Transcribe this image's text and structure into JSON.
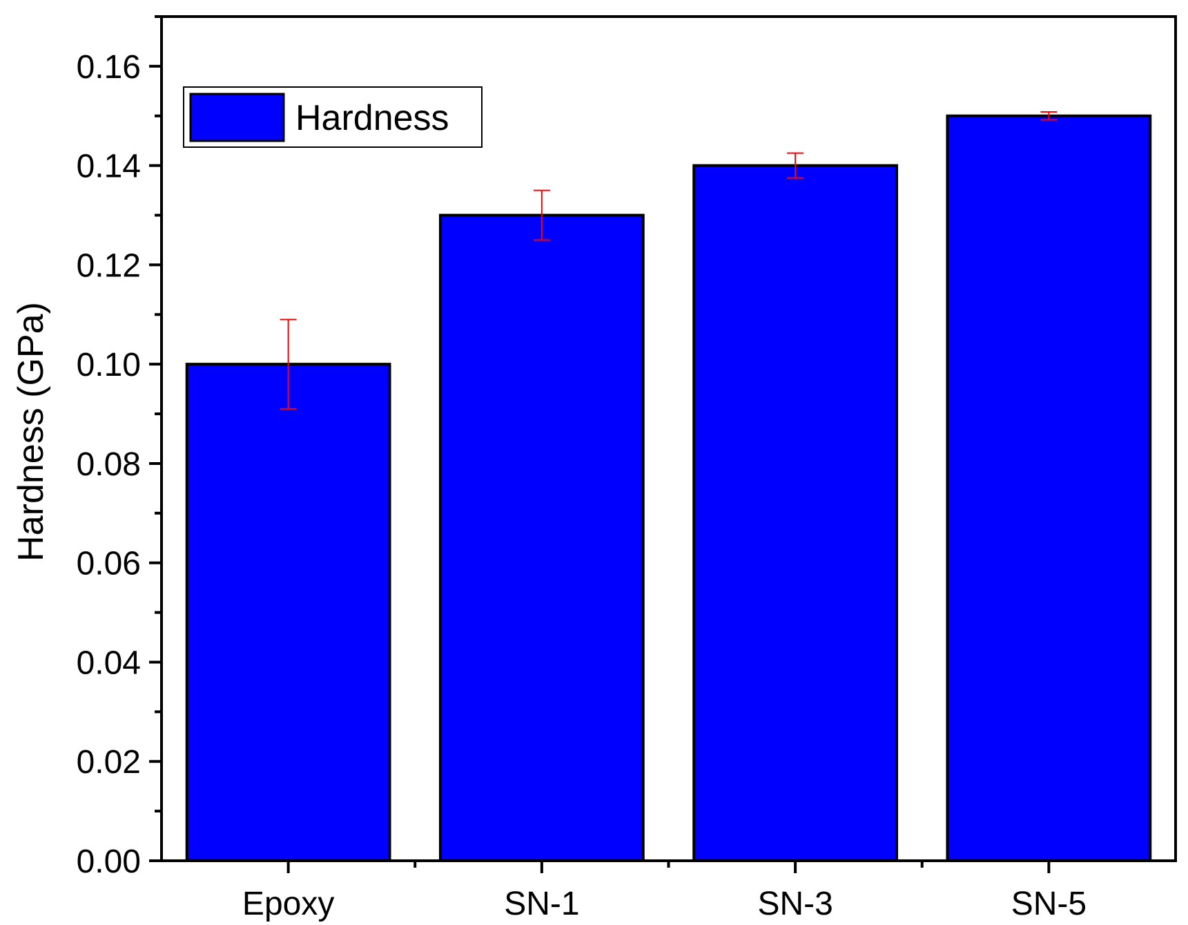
{
  "chart_data": {
    "type": "bar",
    "categories": [
      "Epoxy",
      "SN-1",
      "SN-3",
      "SN-5"
    ],
    "series": [
      {
        "name": "Hardness",
        "values": [
          0.1,
          0.13,
          0.14,
          0.15
        ],
        "errors": [
          0.009,
          0.005,
          0.0025,
          0.0008
        ],
        "color": "#0000FF",
        "error_color": "#FF0000"
      }
    ],
    "ylabel": "Hardness (GPa)",
    "xlabel": "",
    "ylim": [
      0,
      0.17
    ],
    "yticks": [
      "0.00",
      "0.02",
      "0.04",
      "0.06",
      "0.08",
      "0.10",
      "0.12",
      "0.14",
      "0.16"
    ],
    "grid": false,
    "legend_position": "top-left",
    "legend_label": "Hardness"
  }
}
